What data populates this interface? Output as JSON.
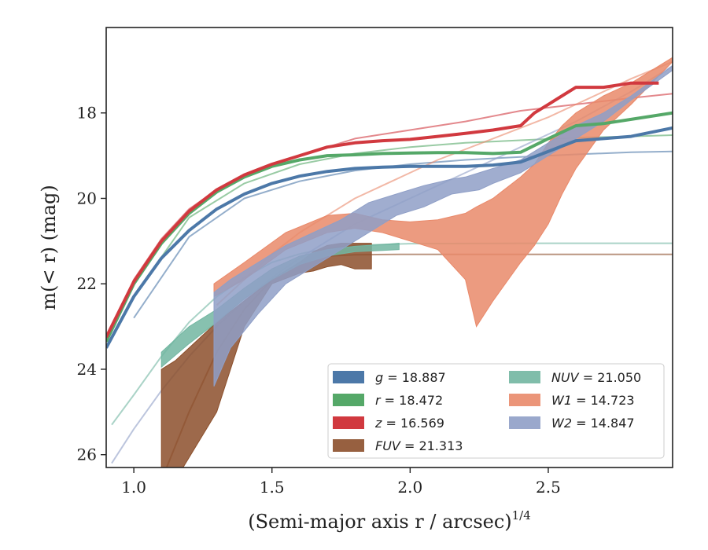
{
  "chart_data": {
    "type": "line",
    "xlabel": "(Semi-major axis r / arcsec)",
    "xlabel_italic_var": "r",
    "xlabel_sup": "1/4",
    "ylabel": "m(< r) (mag)",
    "xlim": [
      0.9,
      2.95
    ],
    "ylim": [
      26.3,
      16.0
    ],
    "y_inverted": true,
    "xticks": [
      "1.0",
      "1.5",
      "2.0",
      "2.5"
    ],
    "yticks": [
      "18",
      "20",
      "22",
      "24",
      "26"
    ],
    "grid": false,
    "legend_position": "lower-right",
    "series": [
      {
        "name": "g",
        "label": "g = 18.887",
        "color": "#4c78a8",
        "kind": "line",
        "width": 4,
        "x": [
          0.9,
          1.0,
          1.1,
          1.2,
          1.3,
          1.4,
          1.5,
          1.6,
          1.7,
          1.8,
          1.9,
          2.0,
          2.1,
          2.2,
          2.3,
          2.4,
          2.5,
          2.6,
          2.7,
          2.8,
          2.95
        ],
        "y": [
          23.5,
          22.3,
          21.4,
          20.75,
          20.25,
          19.9,
          19.65,
          19.48,
          19.37,
          19.3,
          19.27,
          19.25,
          19.25,
          19.25,
          19.22,
          19.15,
          18.9,
          18.65,
          18.6,
          18.55,
          18.35
        ]
      },
      {
        "name": "r",
        "label": "r = 18.472",
        "color": "#55a868",
        "kind": "line",
        "width": 4,
        "x": [
          0.9,
          1.0,
          1.1,
          1.2,
          1.3,
          1.4,
          1.5,
          1.6,
          1.7,
          1.8,
          1.9,
          2.0,
          2.1,
          2.2,
          2.3,
          2.4,
          2.5,
          2.6,
          2.7,
          2.8,
          2.95
        ],
        "y": [
          23.35,
          22.0,
          21.05,
          20.35,
          19.85,
          19.5,
          19.25,
          19.1,
          19.0,
          18.98,
          18.95,
          18.94,
          18.93,
          18.93,
          18.95,
          18.92,
          18.6,
          18.3,
          18.25,
          18.15,
          18.0
        ]
      },
      {
        "name": "z",
        "label": "z = 16.569",
        "color": "#d1393f",
        "kind": "line",
        "width": 4,
        "x": [
          0.9,
          1.0,
          1.1,
          1.2,
          1.3,
          1.4,
          1.5,
          1.6,
          1.7,
          1.8,
          1.9,
          2.0,
          2.1,
          2.2,
          2.3,
          2.4,
          2.45,
          2.5,
          2.55,
          2.6,
          2.7,
          2.8,
          2.9
        ],
        "y": [
          23.25,
          21.95,
          21.0,
          20.3,
          19.8,
          19.45,
          19.2,
          19.0,
          18.8,
          18.7,
          18.65,
          18.62,
          18.55,
          18.48,
          18.4,
          18.3,
          18.0,
          17.8,
          17.6,
          17.4,
          17.4,
          17.3,
          17.3
        ]
      },
      {
        "name": "FUV",
        "label": "FUV = 21.313",
        "color": "#8c4f2b",
        "kind": "band",
        "x": [
          1.1,
          1.15,
          1.3,
          1.4,
          1.5,
          1.6,
          1.65,
          1.7,
          1.75,
          1.8,
          1.86
        ],
        "y_lo": [
          24.0,
          23.8,
          22.9,
          22.4,
          21.9,
          21.5,
          21.25,
          21.1,
          21.05,
          21.05,
          21.05
        ],
        "y_hi": [
          27.0,
          26.6,
          25.0,
          23.0,
          22.0,
          21.75,
          21.7,
          21.6,
          21.55,
          21.65,
          21.65
        ]
      },
      {
        "name": "NUV",
        "label": "NUV = 21.050",
        "color": "#72b6a1",
        "kind": "band",
        "x": [
          1.1,
          1.2,
          1.3,
          1.4,
          1.5,
          1.6,
          1.7,
          1.8,
          1.9,
          1.96
        ],
        "y_lo": [
          23.6,
          23.0,
          22.6,
          22.1,
          21.65,
          21.35,
          21.2,
          21.12,
          21.08,
          21.05
        ],
        "y_hi": [
          23.95,
          23.4,
          22.9,
          22.35,
          21.9,
          21.55,
          21.35,
          21.25,
          21.22,
          21.2
        ]
      },
      {
        "name": "W1",
        "label": "W1 = 14.723",
        "color": "#e9896a",
        "kind": "band",
        "x": [
          1.29,
          1.4,
          1.55,
          1.7,
          1.8,
          1.9,
          2.0,
          2.1,
          2.2,
          2.24,
          2.3,
          2.4,
          2.45,
          2.5,
          2.55,
          2.6,
          2.7,
          2.8,
          2.95
        ],
        "y_lo": [
          22.0,
          21.5,
          20.8,
          20.4,
          20.35,
          20.5,
          20.55,
          20.5,
          20.35,
          20.2,
          20.0,
          19.5,
          19.2,
          18.7,
          18.3,
          18.0,
          17.6,
          17.3,
          16.7
        ],
        "y_hi": [
          22.3,
          21.9,
          21.2,
          20.8,
          20.7,
          20.8,
          21.0,
          21.2,
          21.9,
          23.0,
          22.4,
          21.5,
          21.1,
          20.6,
          19.9,
          19.3,
          18.4,
          17.8,
          16.8
        ]
      },
      {
        "name": "W2",
        "label": "W2 = 14.847",
        "color": "#8f9fc7",
        "kind": "band",
        "x": [
          1.29,
          1.35,
          1.45,
          1.55,
          1.65,
          1.75,
          1.85,
          1.95,
          2.05,
          2.15,
          2.2,
          2.25,
          2.3,
          2.4,
          2.5,
          2.6,
          2.7,
          2.8,
          2.95
        ],
        "y_lo": [
          22.2,
          21.9,
          21.5,
          21.1,
          20.8,
          20.5,
          20.1,
          19.9,
          19.7,
          19.55,
          19.5,
          19.4,
          19.3,
          19.1,
          18.7,
          18.3,
          18.0,
          17.6,
          16.9
        ],
        "y_hi": [
          24.4,
          23.5,
          22.7,
          22.0,
          21.6,
          21.2,
          20.8,
          20.4,
          20.2,
          19.9,
          19.85,
          19.8,
          19.65,
          19.4,
          19.0,
          18.6,
          18.2,
          17.7,
          17.0
        ]
      }
    ],
    "fits": [
      {
        "name": "g-fit",
        "color": "#4c78a8",
        "x": [
          1.0,
          1.2,
          1.4,
          1.6,
          1.8,
          2.0,
          2.2,
          2.4,
          2.6,
          2.8,
          2.95
        ],
        "y": [
          22.8,
          20.9,
          20.0,
          19.6,
          19.35,
          19.2,
          19.1,
          19.03,
          18.97,
          18.92,
          18.9
        ]
      },
      {
        "name": "r-fit",
        "color": "#55a868",
        "x": [
          1.0,
          1.2,
          1.4,
          1.6,
          1.8,
          2.0,
          2.2,
          2.4,
          2.6,
          2.8,
          2.95
        ],
        "y": [
          22.3,
          20.45,
          19.65,
          19.2,
          18.95,
          18.8,
          18.7,
          18.64,
          18.58,
          18.55,
          18.52
        ]
      },
      {
        "name": "z-fit",
        "color": "#d1393f",
        "x": [
          0.92,
          1.0,
          1.1,
          1.2,
          1.3,
          1.4,
          1.5,
          1.6,
          1.8,
          2.0,
          2.2,
          2.4,
          2.6,
          2.8,
          2.95
        ],
        "y": [
          23.1,
          21.9,
          20.95,
          20.25,
          19.8,
          19.45,
          19.2,
          19.0,
          18.6,
          18.4,
          18.2,
          17.95,
          17.8,
          17.65,
          17.55
        ]
      },
      {
        "name": "FUV-fit",
        "color": "#8c4f2b",
        "x": [
          1.1,
          1.2,
          1.3,
          1.4,
          1.5,
          1.6,
          1.7,
          1.8,
          2.0,
          2.5,
          2.95
        ],
        "y": [
          26.6,
          25.0,
          23.6,
          22.6,
          21.9,
          21.5,
          21.35,
          21.32,
          21.31,
          21.31,
          21.31
        ]
      },
      {
        "name": "NUV-fit",
        "color": "#72b6a1",
        "x": [
          0.92,
          1.0,
          1.1,
          1.2,
          1.3,
          1.4,
          1.5,
          1.6,
          1.7,
          1.8,
          2.0,
          2.5,
          2.95
        ],
        "y": [
          25.3,
          24.6,
          23.7,
          22.9,
          22.3,
          21.85,
          21.5,
          21.3,
          21.17,
          21.1,
          21.06,
          21.05,
          21.05
        ]
      },
      {
        "name": "W1-fit",
        "color": "#e9896a",
        "x": [
          1.3,
          1.4,
          1.5,
          1.6,
          1.7,
          1.8,
          1.9,
          2.0,
          2.1,
          2.2,
          2.3,
          2.4,
          2.5,
          2.6,
          2.7,
          2.8,
          2.95
        ],
        "y": [
          22.5,
          21.9,
          21.3,
          20.8,
          20.4,
          20.0,
          19.7,
          19.4,
          19.1,
          18.85,
          18.6,
          18.35,
          18.1,
          17.8,
          17.5,
          17.2,
          16.8
        ]
      },
      {
        "name": "W2-fit",
        "color": "#8f9fc7",
        "x": [
          0.92,
          1.0,
          1.1,
          1.2,
          1.3,
          1.4,
          1.5,
          1.6,
          1.7,
          1.8,
          1.9,
          2.0,
          2.2,
          2.4,
          2.6,
          2.8,
          2.95
        ],
        "y": [
          26.2,
          25.4,
          24.5,
          23.7,
          23.0,
          22.4,
          21.85,
          21.4,
          21.0,
          20.6,
          20.3,
          20.0,
          19.4,
          18.8,
          18.2,
          17.5,
          16.9
        ]
      }
    ]
  }
}
